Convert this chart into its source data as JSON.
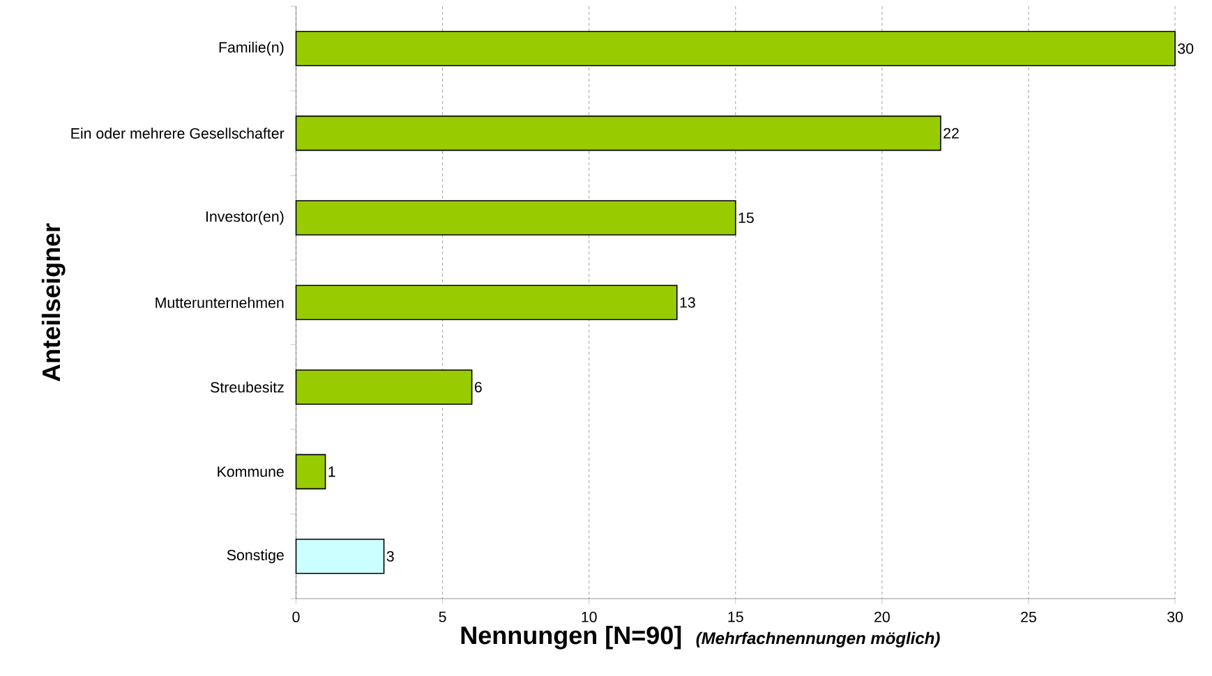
{
  "chart_data": {
    "type": "bar",
    "orientation": "horizontal",
    "categories": [
      "Familie(n)",
      "Ein oder mehrere Gesellschafter",
      "Investor(en)",
      "Mutterunternehmen",
      "Streubesitz",
      "Kommune",
      "Sonstige"
    ],
    "values": [
      30,
      22,
      15,
      13,
      6,
      1,
      3
    ],
    "colors": [
      "#99cc00",
      "#99cc00",
      "#99cc00",
      "#99cc00",
      "#99cc00",
      "#99cc00",
      "#ccffff"
    ],
    "xlabel": "Nennungen [N=90]",
    "ylabel": "Anteilseigner",
    "annotations": [
      "(Mehrfachnennungen möglich)"
    ],
    "xlim": [
      0,
      30
    ],
    "xticks": [
      0,
      5,
      10,
      15,
      20,
      25,
      30
    ],
    "grid": "x",
    "data_labels": true
  }
}
